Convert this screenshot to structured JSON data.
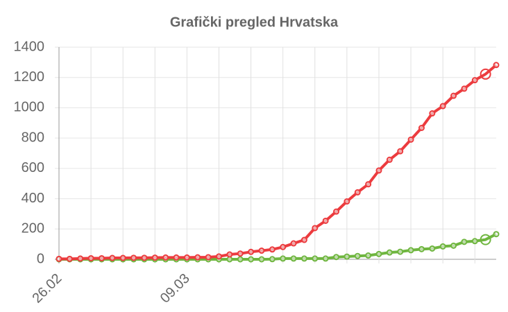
{
  "chart_data": {
    "type": "line",
    "title": "Grafički pregled Hrvatska",
    "categories": [
      "26.02",
      null,
      null,
      null,
      null,
      null,
      null,
      null,
      null,
      null,
      null,
      null,
      "09.03",
      null,
      null,
      null,
      null,
      null,
      null,
      null,
      null,
      null,
      null,
      null,
      null,
      null,
      null,
      null,
      null,
      null,
      null,
      null,
      null,
      null,
      null,
      null,
      null,
      null,
      null,
      null,
      null,
      null
    ],
    "series": [
      {
        "color": "#ec3b3e",
        "values": [
          3,
          3,
          5,
          7,
          7,
          9,
          9,
          10,
          10,
          11,
          12,
          12,
          12,
          13,
          14,
          19,
          32,
          38,
          49,
          57,
          65,
          81,
          105,
          128,
          206,
          254,
          315,
          382,
          442,
          495,
          586,
          657,
          713,
          790,
          867,
          963,
          1011,
          1079,
          1126,
          1182,
          1222,
          1282
        ]
      },
      {
        "color": "#6fb63f",
        "values": [
          0,
          0,
          0,
          0,
          0,
          0,
          0,
          0,
          0,
          0,
          0,
          0,
          0,
          0,
          0,
          0,
          0,
          0,
          0,
          0,
          1,
          5,
          5,
          5,
          5,
          5,
          15,
          18,
          22,
          25,
          35,
          45,
          50,
          60,
          67,
          71,
          85,
          90,
          115,
          120,
          130,
          166
        ]
      }
    ],
    "ylim": [
      0,
      1400
    ],
    "yticks": [
      0,
      200,
      400,
      600,
      800,
      1000,
      1200,
      1400
    ],
    "grid": true
  }
}
